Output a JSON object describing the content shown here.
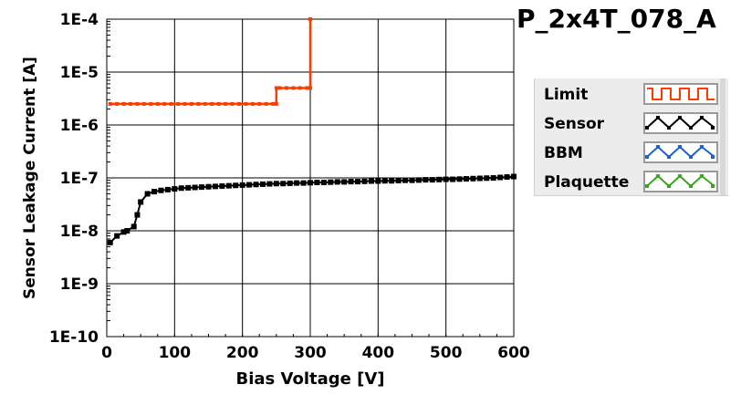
{
  "chart_data": {
    "type": "line",
    "title": "P_2x4T_078_A",
    "xlabel": "Bias Voltage [V]",
    "ylabel": "Sensor Leakage Current [A]",
    "xlim": [
      0,
      600
    ],
    "ylim": [
      1e-10,
      0.0001
    ],
    "y_scale": "log",
    "x_ticks": [
      0,
      100,
      200,
      300,
      400,
      500,
      600
    ],
    "x_tick_labels": [
      "0",
      "100",
      "200",
      "300",
      "400",
      "500",
      "600"
    ],
    "y_ticks": [
      1e-10,
      1e-09,
      1e-08,
      1e-07,
      1e-06,
      1e-05,
      0.0001
    ],
    "y_tick_labels": [
      "1E-10",
      "1E-9",
      "1E-8",
      "1E-7",
      "1E-6",
      "1E-5",
      "1E-4"
    ],
    "grid": true,
    "legend_position": "right",
    "series": [
      {
        "name": "Limit",
        "color": "#ff3c00",
        "x": [
          5,
          15,
          25,
          35,
          45,
          55,
          65,
          75,
          85,
          95,
          105,
          115,
          125,
          135,
          145,
          155,
          165,
          175,
          185,
          195,
          205,
          215,
          225,
          235,
          245,
          250,
          250,
          255,
          265,
          275,
          285,
          295,
          300,
          300
        ],
        "y": [
          2.5e-06,
          2.5e-06,
          2.5e-06,
          2.5e-06,
          2.5e-06,
          2.5e-06,
          2.5e-06,
          2.5e-06,
          2.5e-06,
          2.5e-06,
          2.5e-06,
          2.5e-06,
          2.5e-06,
          2.5e-06,
          2.5e-06,
          2.5e-06,
          2.5e-06,
          2.5e-06,
          2.5e-06,
          2.5e-06,
          2.5e-06,
          2.5e-06,
          2.5e-06,
          2.5e-06,
          2.5e-06,
          2.5e-06,
          5e-06,
          5e-06,
          5e-06,
          5e-06,
          5e-06,
          5e-06,
          5e-06,
          0.0001
        ]
      },
      {
        "name": "Sensor",
        "color": "#000000",
        "x": [
          5,
          15,
          25,
          30,
          40,
          45,
          50,
          60,
          70,
          80,
          90,
          100,
          110,
          120,
          130,
          140,
          150,
          160,
          170,
          180,
          190,
          200,
          210,
          220,
          230,
          240,
          250,
          260,
          270,
          280,
          290,
          300,
          310,
          320,
          330,
          340,
          350,
          360,
          370,
          380,
          390,
          400,
          410,
          420,
          430,
          440,
          450,
          460,
          470,
          480,
          490,
          500,
          510,
          520,
          530,
          540,
          550,
          560,
          570,
          580,
          590,
          600
        ],
        "y": [
          6e-09,
          8e-09,
          9.5e-09,
          1e-08,
          1.2e-08,
          2e-08,
          3.5e-08,
          5e-08,
          5.5e-08,
          5.8e-08,
          6e-08,
          6.2e-08,
          6.4e-08,
          6.5e-08,
          6.6e-08,
          6.7e-08,
          6.8e-08,
          6.9e-08,
          7e-08,
          7.1e-08,
          7.2e-08,
          7.3e-08,
          7.4e-08,
          7.5e-08,
          7.6e-08,
          7.7e-08,
          7.8e-08,
          7.8e-08,
          7.9e-08,
          8e-08,
          8e-08,
          8.1e-08,
          8.2e-08,
          8.2e-08,
          8.3e-08,
          8.4e-08,
          8.4e-08,
          8.5e-08,
          8.5e-08,
          8.6e-08,
          8.7e-08,
          8.7e-08,
          8.8e-08,
          8.8e-08,
          8.9e-08,
          9e-08,
          9e-08,
          9.1e-08,
          9.2e-08,
          9.2e-08,
          9.3e-08,
          9.4e-08,
          9.4e-08,
          9.5e-08,
          9.6e-08,
          9.7e-08,
          9.8e-08,
          9.9e-08,
          1e-07,
          1.02e-07,
          1.04e-07,
          1.06e-07
        ]
      }
    ],
    "legend": [
      {
        "name": "Limit",
        "color": "#ff3c00",
        "marker": "square-wave"
      },
      {
        "name": "Sensor",
        "color": "#000000",
        "marker": "zigzag"
      },
      {
        "name": "BBM",
        "color": "#1f5fd6",
        "marker": "zigzag"
      },
      {
        "name": "Plaquette",
        "color": "#3aa61e",
        "marker": "zigzag"
      }
    ]
  }
}
